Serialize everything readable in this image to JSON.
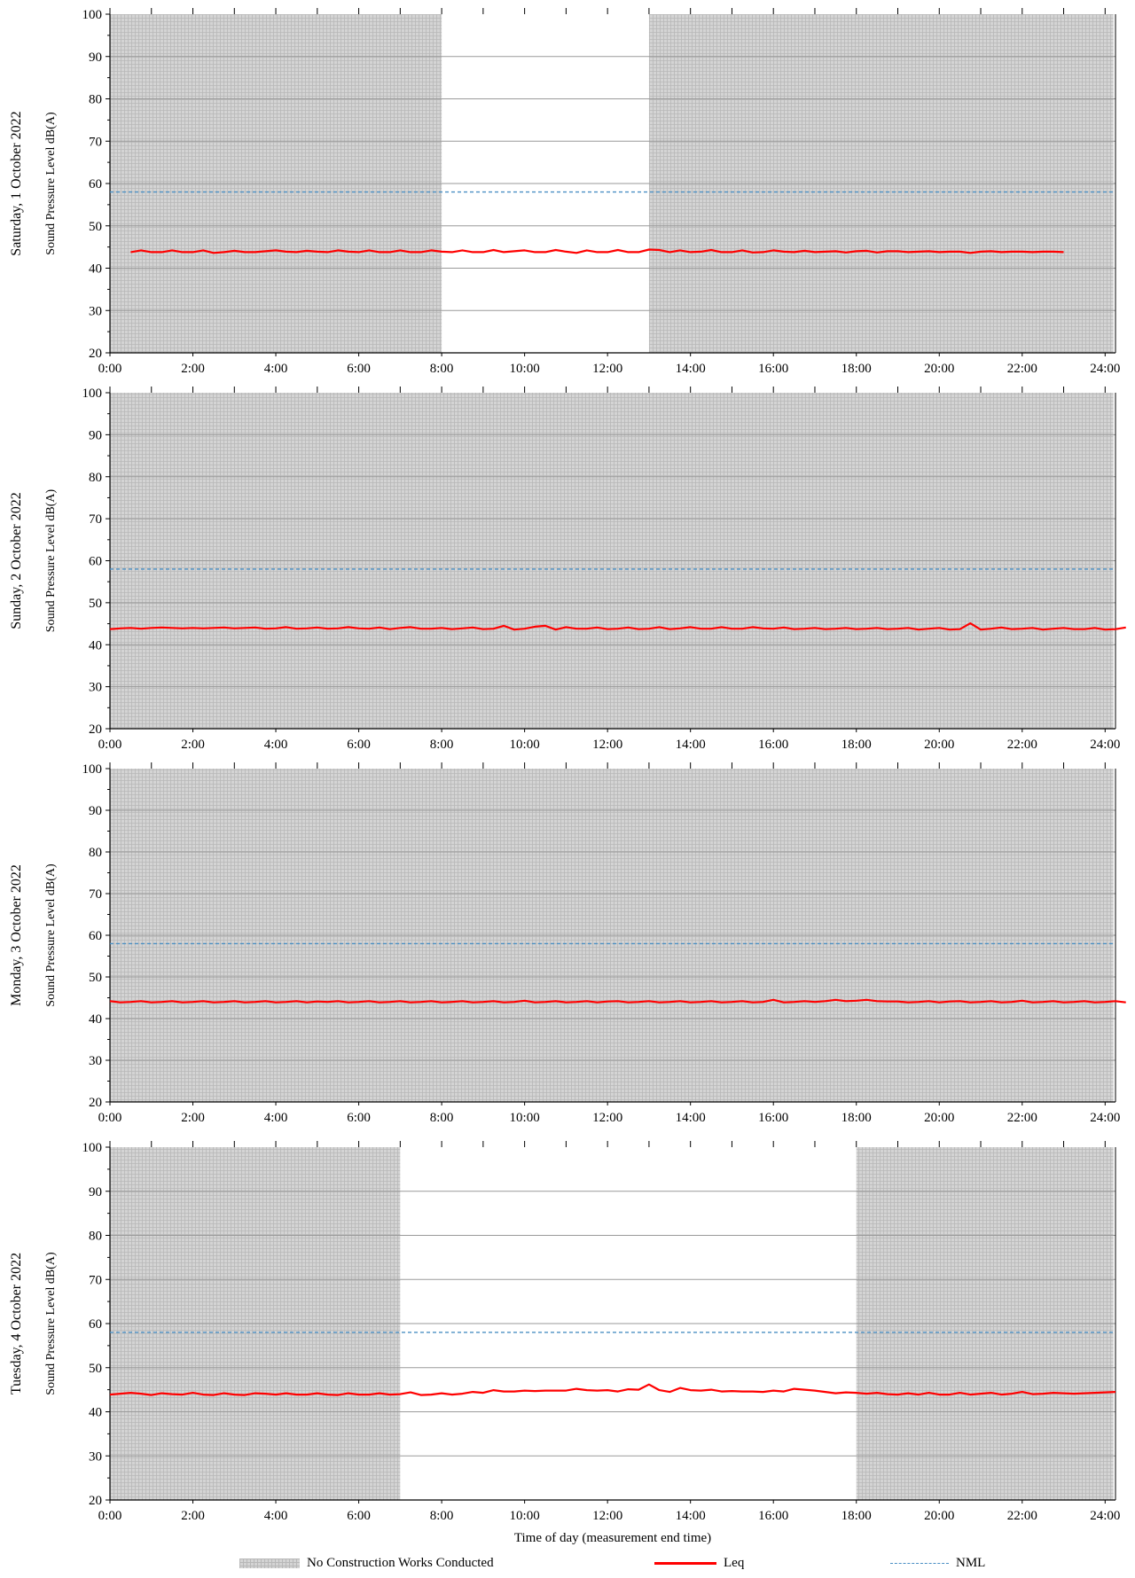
{
  "chart_data": [
    {
      "type": "line",
      "panel_label": "Saturday, 1 October 2022",
      "ylabel": "Sound Pressure Level dB(A)",
      "xlabel": "",
      "ylim": [
        20,
        100
      ],
      "yticks": [
        "20",
        "30",
        "40",
        "50",
        "60",
        "70",
        "80",
        "90",
        "100"
      ],
      "xlim": [
        0,
        24
      ],
      "xticks": [
        "0:00",
        "2:00",
        "4:00",
        "6:00",
        "8:00",
        "10:00",
        "12:00",
        "14:00",
        "16:00",
        "18:00",
        "20:00",
        "22:00",
        "24:00"
      ],
      "grid": true,
      "no_works_periods": [
        [
          0,
          8
        ],
        [
          13,
          24.2
        ]
      ],
      "nml": 58,
      "leq": {
        "x_start": 0.5,
        "x_step": 0.25,
        "values": [
          43.8,
          44.2,
          43.8,
          43.8,
          44.2,
          43.8,
          43.8,
          44.2,
          43.6,
          43.8,
          44.1,
          43.8,
          43.8,
          44.0,
          44.2,
          43.9,
          43.8,
          44.1,
          43.9,
          43.8,
          44.2,
          43.9,
          43.8,
          44.2,
          43.8,
          43.8,
          44.2,
          43.8,
          43.8,
          44.2,
          43.9,
          43.8,
          44.2,
          43.8,
          43.8,
          44.3,
          43.8,
          44.0,
          44.2,
          43.8,
          43.8,
          44.3,
          43.9,
          43.6,
          44.2,
          43.8,
          43.8,
          44.3,
          43.8,
          43.8,
          44.4,
          44.3,
          43.8,
          44.2,
          43.8,
          43.9,
          44.3,
          43.8,
          43.8,
          44.2,
          43.7,
          43.8,
          44.2,
          43.9,
          43.8,
          44.1,
          43.8,
          43.9,
          44.0,
          43.7,
          44.0,
          44.1,
          43.7,
          44.0,
          44.0,
          43.8,
          43.9,
          44.0,
          43.8,
          43.9,
          43.9,
          43.6,
          43.9,
          44.0,
          43.8,
          43.9,
          43.9,
          43.8,
          43.9,
          43.9,
          43.8
        ]
      }
    },
    {
      "type": "line",
      "panel_label": "Sunday, 2 October 2022",
      "ylabel": "Sound Pressure Level dB(A)",
      "xlabel": "",
      "ylim": [
        20,
        100
      ],
      "yticks": [
        "20",
        "30",
        "40",
        "50",
        "60",
        "70",
        "80",
        "90",
        "100"
      ],
      "xlim": [
        0,
        24
      ],
      "xticks": [
        "0:00",
        "2:00",
        "4:00",
        "6:00",
        "8:00",
        "10:00",
        "12:00",
        "14:00",
        "16:00",
        "18:00",
        "20:00",
        "22:00",
        "24:00"
      ],
      "grid": true,
      "no_works_periods": [
        [
          0,
          24.2
        ]
      ],
      "nml": 58,
      "leq": {
        "x_start": 0.0,
        "x_step": 0.25,
        "values": [
          43.7,
          43.9,
          44.0,
          43.8,
          44.0,
          44.1,
          44.0,
          43.9,
          44.0,
          43.9,
          44.0,
          44.1,
          43.9,
          44.0,
          44.1,
          43.8,
          43.9,
          44.2,
          43.8,
          43.9,
          44.1,
          43.8,
          43.9,
          44.2,
          43.9,
          43.8,
          44.1,
          43.7,
          44.0,
          44.2,
          43.8,
          43.8,
          44.0,
          43.7,
          43.9,
          44.1,
          43.7,
          43.8,
          44.5,
          43.6,
          43.8,
          44.3,
          44.5,
          43.6,
          44.2,
          43.8,
          43.8,
          44.1,
          43.7,
          43.8,
          44.1,
          43.7,
          43.8,
          44.2,
          43.7,
          43.9,
          44.2,
          43.8,
          43.8,
          44.2,
          43.8,
          43.8,
          44.2,
          43.9,
          43.8,
          44.1,
          43.7,
          43.8,
          44.0,
          43.7,
          43.8,
          44.0,
          43.7,
          43.8,
          44.0,
          43.7,
          43.8,
          44.0,
          43.6,
          43.8,
          44.0,
          43.6,
          43.7,
          45.1,
          43.6,
          43.8,
          44.1,
          43.7,
          43.8,
          44.0,
          43.6,
          43.8,
          44.0,
          43.7,
          43.7,
          44.0,
          43.6,
          43.7,
          44.1
        ]
      }
    },
    {
      "type": "line",
      "panel_label": "Monday, 3 October 2022",
      "ylabel": "Sound Pressure Level dB(A)",
      "xlabel": "",
      "ylim": [
        20,
        100
      ],
      "yticks": [
        "20",
        "30",
        "40",
        "50",
        "60",
        "70",
        "80",
        "90",
        "100"
      ],
      "xlim": [
        0,
        24
      ],
      "xticks": [
        "0:00",
        "2:00",
        "4:00",
        "6:00",
        "8:00",
        "10:00",
        "12:00",
        "14:00",
        "16:00",
        "18:00",
        "20:00",
        "22:00",
        "24:00"
      ],
      "grid": true,
      "no_works_periods": [
        [
          0,
          24.2
        ]
      ],
      "nml": 58,
      "leq": {
        "x_start": 0.0,
        "x_step": 0.25,
        "values": [
          44.2,
          43.9,
          44.0,
          44.2,
          43.9,
          44.0,
          44.2,
          43.9,
          44.0,
          44.2,
          43.9,
          44.0,
          44.2,
          43.9,
          44.0,
          44.2,
          43.9,
          44.0,
          44.2,
          43.9,
          44.1,
          44.0,
          44.2,
          43.9,
          44.0,
          44.2,
          43.9,
          44.0,
          44.2,
          43.9,
          44.0,
          44.2,
          43.9,
          44.0,
          44.2,
          43.9,
          44.0,
          44.2,
          43.9,
          44.0,
          44.3,
          43.9,
          44.0,
          44.2,
          43.9,
          44.0,
          44.2,
          43.9,
          44.1,
          44.2,
          43.9,
          44.0,
          44.2,
          43.9,
          44.0,
          44.2,
          43.9,
          44.0,
          44.2,
          43.9,
          44.0,
          44.2,
          43.9,
          44.0,
          44.5,
          43.9,
          44.0,
          44.2,
          44.0,
          44.2,
          44.5,
          44.2,
          44.3,
          44.5,
          44.2,
          44.1,
          44.1,
          43.9,
          44.0,
          44.2,
          43.9,
          44.1,
          44.2,
          43.9,
          44.0,
          44.2,
          43.9,
          44.0,
          44.3,
          43.9,
          44.0,
          44.2,
          43.9,
          44.0,
          44.2,
          43.9,
          44.0,
          44.2,
          43.9
        ]
      }
    },
    {
      "type": "line",
      "panel_label": "Tuesday, 4 October 2022",
      "ylabel": "Sound Pressure Level dB(A)",
      "xlabel": "Time of day (measurement end time)",
      "ylim": [
        20,
        100
      ],
      "yticks": [
        "20",
        "30",
        "40",
        "50",
        "60",
        "70",
        "80",
        "90",
        "100"
      ],
      "xlim": [
        0,
        24
      ],
      "xticks": [
        "0:00",
        "2:00",
        "4:00",
        "6:00",
        "8:00",
        "10:00",
        "12:00",
        "14:00",
        "16:00",
        "18:00",
        "20:00",
        "22:00",
        "24:00"
      ],
      "grid": true,
      "no_works_periods": [
        [
          0,
          7
        ],
        [
          18,
          24.2
        ]
      ],
      "nml": 58,
      "leq": {
        "x_start": 0.0,
        "x_step": 0.25,
        "values": [
          43.9,
          44.1,
          44.3,
          44.1,
          43.8,
          44.2,
          44.0,
          43.9,
          44.3,
          43.9,
          43.8,
          44.2,
          43.9,
          43.8,
          44.2,
          44.1,
          43.9,
          44.2,
          43.9,
          43.9,
          44.2,
          43.9,
          43.8,
          44.2,
          43.9,
          43.9,
          44.2,
          43.9,
          44.0,
          44.4,
          43.8,
          43.9,
          44.2,
          43.9,
          44.1,
          44.5,
          44.3,
          44.9,
          44.6,
          44.6,
          44.8,
          44.7,
          44.8,
          44.8,
          44.8,
          45.2,
          44.9,
          44.8,
          44.9,
          44.6,
          45.1,
          45.0,
          46.2,
          44.9,
          44.5,
          45.4,
          44.9,
          44.8,
          45.0,
          44.6,
          44.7,
          44.6,
          44.6,
          44.5,
          44.8,
          44.6,
          45.2,
          45.0,
          44.8,
          44.5,
          44.2,
          44.4,
          44.3,
          44.1,
          44.3,
          44.0,
          43.9,
          44.2,
          43.9,
          44.3,
          43.9,
          43.9,
          44.3,
          43.9,
          44.1,
          44.3,
          43.9,
          44.1,
          44.5,
          44.0,
          44.1,
          44.3,
          44.2,
          44.1,
          44.2,
          44.3,
          44.4,
          44.5
        ]
      }
    }
  ],
  "legend": {
    "no_works": "No Construction Works Conducted",
    "leq": "Leq",
    "nml": "NML"
  },
  "colors": {
    "leq": "#ff0000",
    "nml": "#4a8fc4",
    "shade": "#d4d4d4",
    "shade_grid": "#b8b8b8",
    "gridline": "#9a9a9a"
  }
}
